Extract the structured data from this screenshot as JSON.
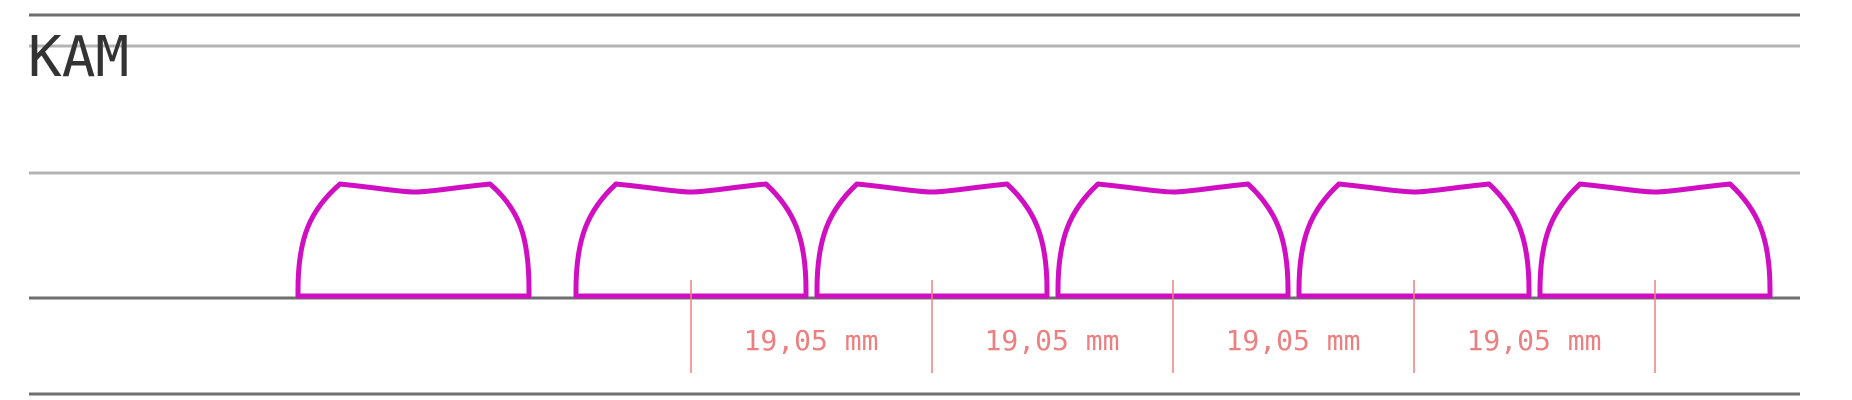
{
  "profile": {
    "name": "KAM"
  },
  "colors": {
    "keycap_outline": "#d10fc2",
    "dimension": "#ec8080",
    "rule_dark": "#6e6e6e",
    "rule_light": "#b4b4b4",
    "title": "#333333"
  },
  "keycaps": {
    "count": 6
  },
  "dimensions": [
    {
      "label": "19,05 mm"
    },
    {
      "label": "19,05 mm"
    },
    {
      "label": "19,05 mm"
    },
    {
      "label": "19,05 mm"
    }
  ]
}
